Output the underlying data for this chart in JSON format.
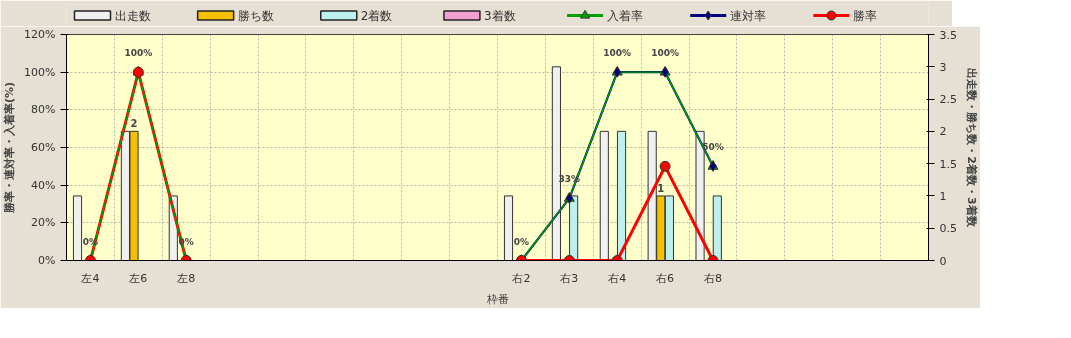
{
  "chart_data": {
    "type": "bar",
    "xlabel": "枠番",
    "ylabel": "勝率・連対率・入着率(%)",
    "y2label": "出走数・勝ち数・2着数・3着数",
    "categories": [
      "左4",
      "左6",
      "左8",
      null,
      null,
      null,
      null,
      null,
      null,
      "右2",
      "右3",
      "右4",
      "右6",
      "右8",
      null,
      null,
      null,
      null
    ],
    "series": [
      {
        "name": "出走数",
        "axis": "y2",
        "color": "#f0f0f0",
        "values": [
          1,
          2,
          1,
          null,
          null,
          null,
          null,
          null,
          null,
          1,
          3,
          2,
          2,
          2,
          null,
          null,
          null,
          null
        ]
      },
      {
        "name": "勝ち数",
        "axis": "y2",
        "color": "#f5c000",
        "values": [
          null,
          2,
          null,
          null,
          null,
          null,
          null,
          null,
          null,
          null,
          null,
          null,
          1,
          null,
          null,
          null,
          null,
          null
        ],
        "value_labels": [
          null,
          "2",
          null,
          null,
          null,
          null,
          null,
          null,
          null,
          null,
          null,
          null,
          "1",
          null,
          null,
          null,
          null,
          null
        ]
      },
      {
        "name": "2着数",
        "axis": "y2",
        "color": "#bff0f0",
        "values": [
          null,
          null,
          null,
          null,
          null,
          null,
          null,
          null,
          null,
          null,
          1,
          2,
          1,
          1,
          null,
          null,
          null,
          null
        ]
      },
      {
        "name": "3着数",
        "axis": "y2",
        "color": "#f0a0d0",
        "values": [
          null,
          null,
          null,
          null,
          null,
          null,
          null,
          null,
          null,
          null,
          null,
          null,
          null,
          null,
          null,
          null,
          null,
          null
        ]
      },
      {
        "name": "入着率",
        "type": "line",
        "marker": "triangle",
        "color": "#00a000",
        "values": [
          0,
          100,
          0,
          null,
          null,
          null,
          null,
          null,
          null,
          0,
          33,
          100,
          100,
          50,
          null,
          null,
          null,
          null
        ],
        "value_labels": [
          "0%",
          "100%",
          "0%",
          null,
          null,
          null,
          null,
          null,
          null,
          "0%",
          "33%",
          "100%",
          "100%",
          "50%",
          null,
          null,
          null,
          null
        ]
      },
      {
        "name": "連対率",
        "type": "line",
        "marker": "diamond",
        "color": "#000080",
        "values": [
          null,
          null,
          null,
          null,
          null,
          null,
          null,
          null,
          null,
          0,
          33,
          100,
          100,
          50,
          null,
          null,
          null,
          null
        ]
      },
      {
        "name": "勝率",
        "type": "line",
        "marker": "circle",
        "color": "#ff0000",
        "values": [
          0,
          100,
          0,
          null,
          null,
          null,
          null,
          null,
          null,
          0,
          0,
          0,
          50,
          0,
          null,
          null,
          null,
          null
        ]
      }
    ],
    "ylim": [
      0,
      120
    ],
    "yticks": [
      {
        "value": 0,
        "label": "0%"
      },
      {
        "value": 20,
        "label": "20%"
      },
      {
        "value": 40,
        "label": "40%"
      },
      {
        "value": 60,
        "label": "60%"
      },
      {
        "value": 80,
        "label": "80%"
      },
      {
        "value": 100,
        "label": "100%"
      },
      {
        "value": 120,
        "label": "120%"
      }
    ],
    "y2lim": [
      0,
      3.5
    ],
    "y2ticks": [
      0,
      0.5,
      1,
      1.5,
      2,
      2.5,
      3,
      3.5
    ],
    "grid": true,
    "legend": "top"
  }
}
